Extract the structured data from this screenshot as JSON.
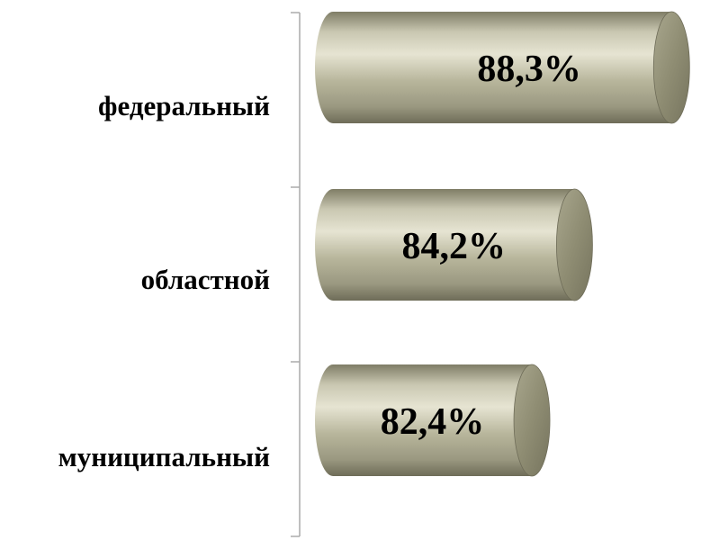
{
  "chart_data": {
    "type": "bar",
    "orientation": "horizontal",
    "style": "3d-cylinder",
    "categories": [
      "федеральный",
      "областной",
      "муниципальный"
    ],
    "values": [
      88.3,
      84.2,
      82.4
    ],
    "value_labels": [
      "88,3%",
      "84,2%",
      "82,4%"
    ],
    "unit": "%",
    "title": "",
    "xlabel": "",
    "ylabel": "",
    "grid": false,
    "legend": "none",
    "colors": {
      "bar_body": "#b8b69c",
      "bar_highlight": "#e6e4d2",
      "bar_shadow": "#8c8a70",
      "bar_cap": "#8f8d73",
      "bar_cap_inner": "#9e9c82",
      "axis": "#aaaaaa",
      "text": "#000000"
    }
  }
}
